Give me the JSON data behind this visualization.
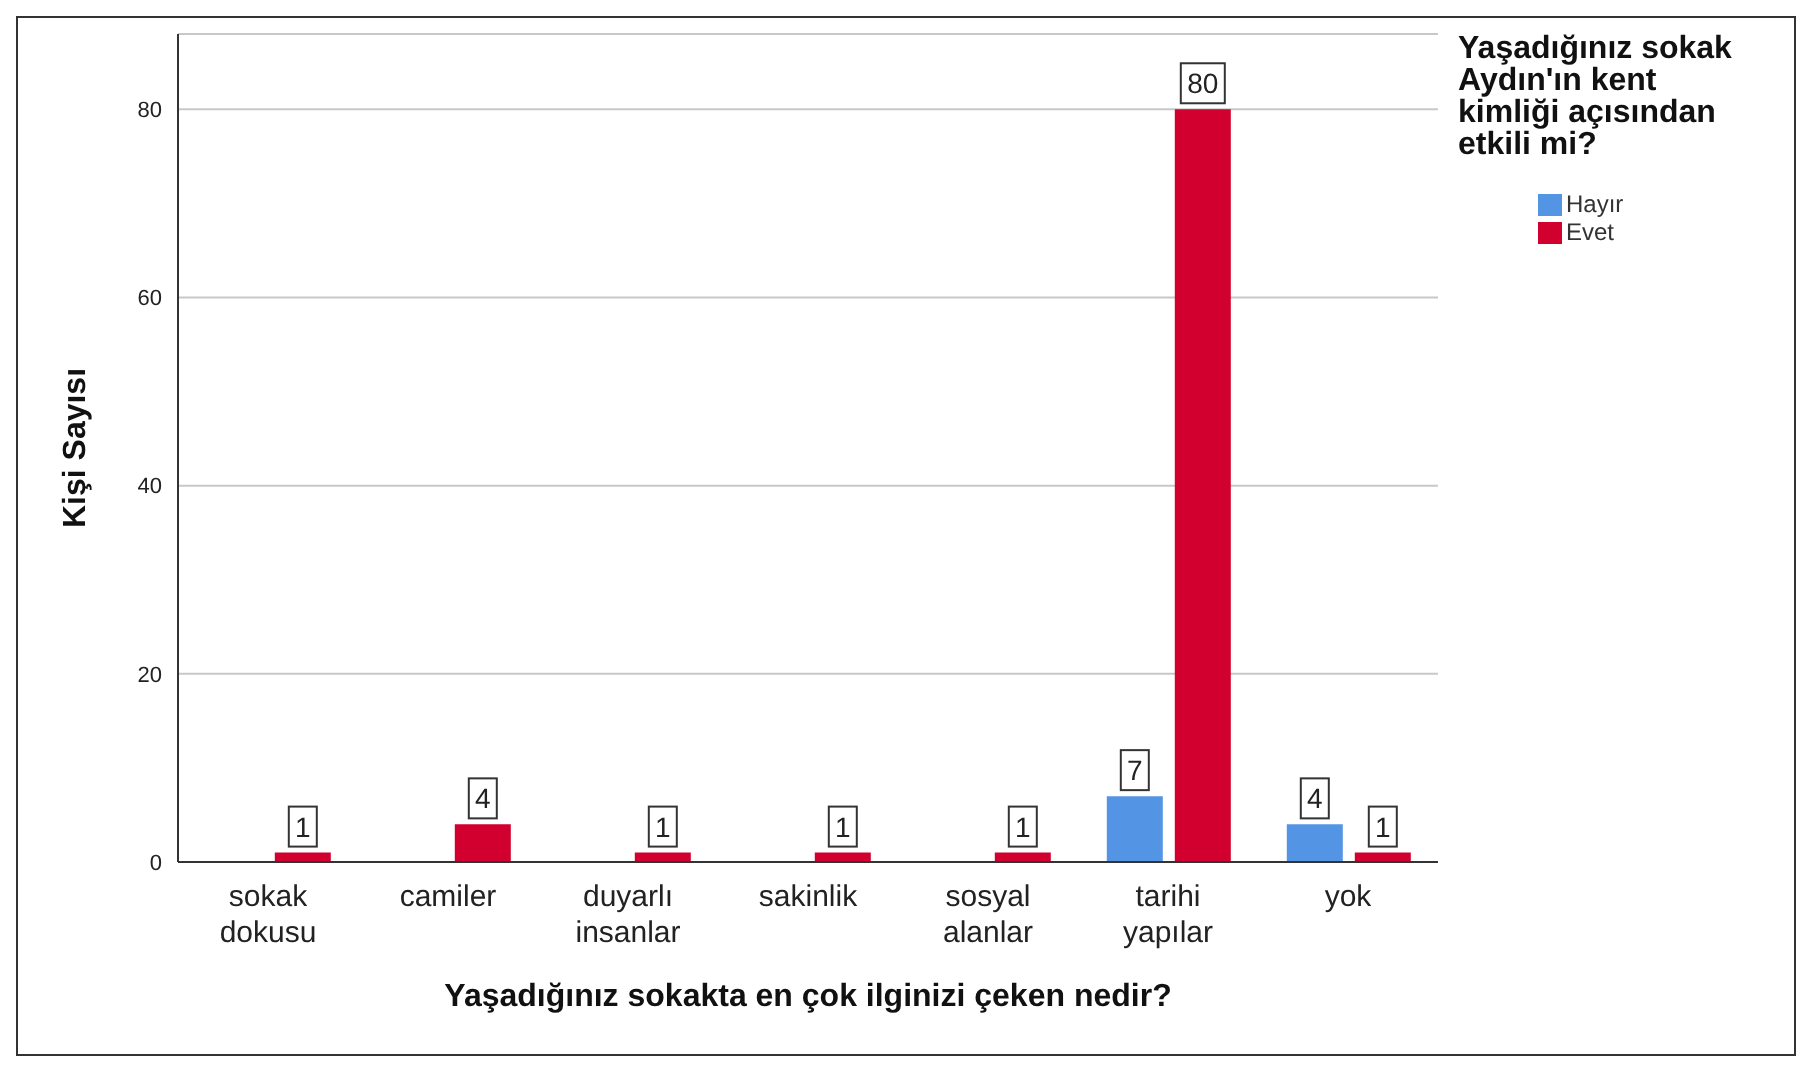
{
  "chart_data": {
    "type": "bar",
    "xlabel": "Yaşadığınız sokakta en çok ilginizi çeken nedir?",
    "ylabel": "Kişi Sayısı",
    "legend_title": "Yaşadığınız sokak Aydın'ın kent kimliği açısından etkili mi?",
    "categories": [
      "sokak dokusu",
      "camiler",
      "duyarlı insanlar",
      "sakinlik",
      "sosyal alanlar",
      "tarihi yapılar",
      "yok"
    ],
    "series": [
      {
        "name": "Hayır",
        "color": "#5394e5",
        "values": [
          null,
          null,
          null,
          null,
          null,
          7,
          4
        ]
      },
      {
        "name": "Evet",
        "color": "#d2002e",
        "values": [
          1,
          4,
          1,
          1,
          1,
          80,
          1
        ]
      }
    ],
    "ylim": [
      0,
      88
    ],
    "yticks": [
      0,
      20,
      40,
      60,
      80
    ],
    "grid": "y",
    "legend": "top right",
    "data_labels": true
  }
}
